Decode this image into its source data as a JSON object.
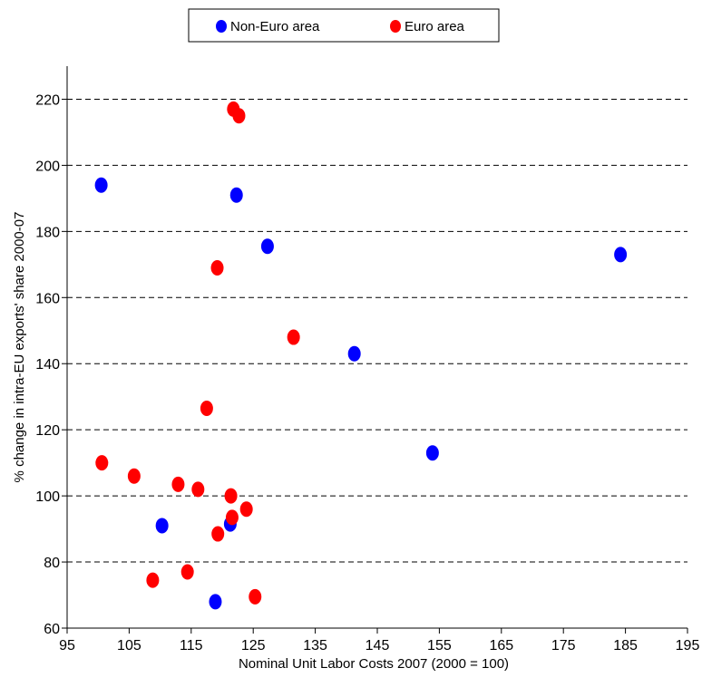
{
  "chart_data": {
    "type": "scatter",
    "xlabel": "Nominal Unit Labor Costs 2007 (2000 = 100)",
    "ylabel": "% change in intra-EU exports' share 2000-07",
    "xlim": [
      95,
      195
    ],
    "ylim": [
      60,
      230
    ],
    "x_ticks": [
      95,
      105,
      115,
      125,
      135,
      145,
      155,
      165,
      175,
      185,
      195
    ],
    "y_ticks": [
      60,
      80,
      100,
      120,
      140,
      160,
      180,
      200,
      220
    ],
    "grid": "horizontal-dashed",
    "legend_position": "top-center",
    "series": [
      {
        "name": "Non-Euro area",
        "color": "#0000ff",
        "points": [
          {
            "x": 100.5,
            "y": 194
          },
          {
            "x": 122.3,
            "y": 191
          },
          {
            "x": 127.3,
            "y": 175.5
          },
          {
            "x": 184.2,
            "y": 173
          },
          {
            "x": 141.3,
            "y": 143
          },
          {
            "x": 153.9,
            "y": 113
          },
          {
            "x": 110.3,
            "y": 91
          },
          {
            "x": 121.3,
            "y": 91.5
          },
          {
            "x": 118.9,
            "y": 68
          }
        ]
      },
      {
        "name": "Euro area",
        "color": "#ff0000",
        "points": [
          {
            "x": 121.8,
            "y": 217
          },
          {
            "x": 122.7,
            "y": 215
          },
          {
            "x": 119.2,
            "y": 169
          },
          {
            "x": 131.5,
            "y": 148
          },
          {
            "x": 117.5,
            "y": 126.5
          },
          {
            "x": 100.6,
            "y": 110
          },
          {
            "x": 105.8,
            "y": 106
          },
          {
            "x": 112.9,
            "y": 103.5
          },
          {
            "x": 116.1,
            "y": 102
          },
          {
            "x": 121.4,
            "y": 100
          },
          {
            "x": 123.9,
            "y": 96
          },
          {
            "x": 121.6,
            "y": 93.5
          },
          {
            "x": 119.3,
            "y": 88.5
          },
          {
            "x": 108.8,
            "y": 74.5
          },
          {
            "x": 114.4,
            "y": 77
          },
          {
            "x": 125.3,
            "y": 69.5
          }
        ]
      }
    ]
  }
}
